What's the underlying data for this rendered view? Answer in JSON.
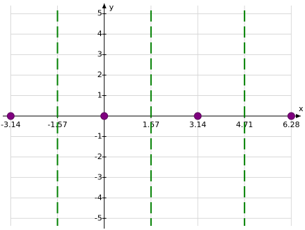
{
  "chart_data": {
    "type": "scatter",
    "x_label": "x",
    "y_label": "y",
    "xlim": [
      -3.5,
      6.6
    ],
    "ylim": [
      -5.5,
      5.5
    ],
    "xticks": [
      -3.14,
      -1.57,
      1.57,
      3.14,
      4.71,
      6.28
    ],
    "yticks": [
      -5,
      -4,
      -3,
      -2,
      -1,
      1,
      2,
      3,
      4,
      5
    ],
    "grid": true,
    "series": [
      {
        "color": "#800080",
        "x": [
          -3.14,
          0,
          3.14,
          6.28
        ],
        "values": [
          0,
          0,
          0,
          0
        ]
      }
    ],
    "vlines": {
      "color": "#008000",
      "x": [
        -1.57,
        1.57,
        4.71
      ]
    }
  }
}
